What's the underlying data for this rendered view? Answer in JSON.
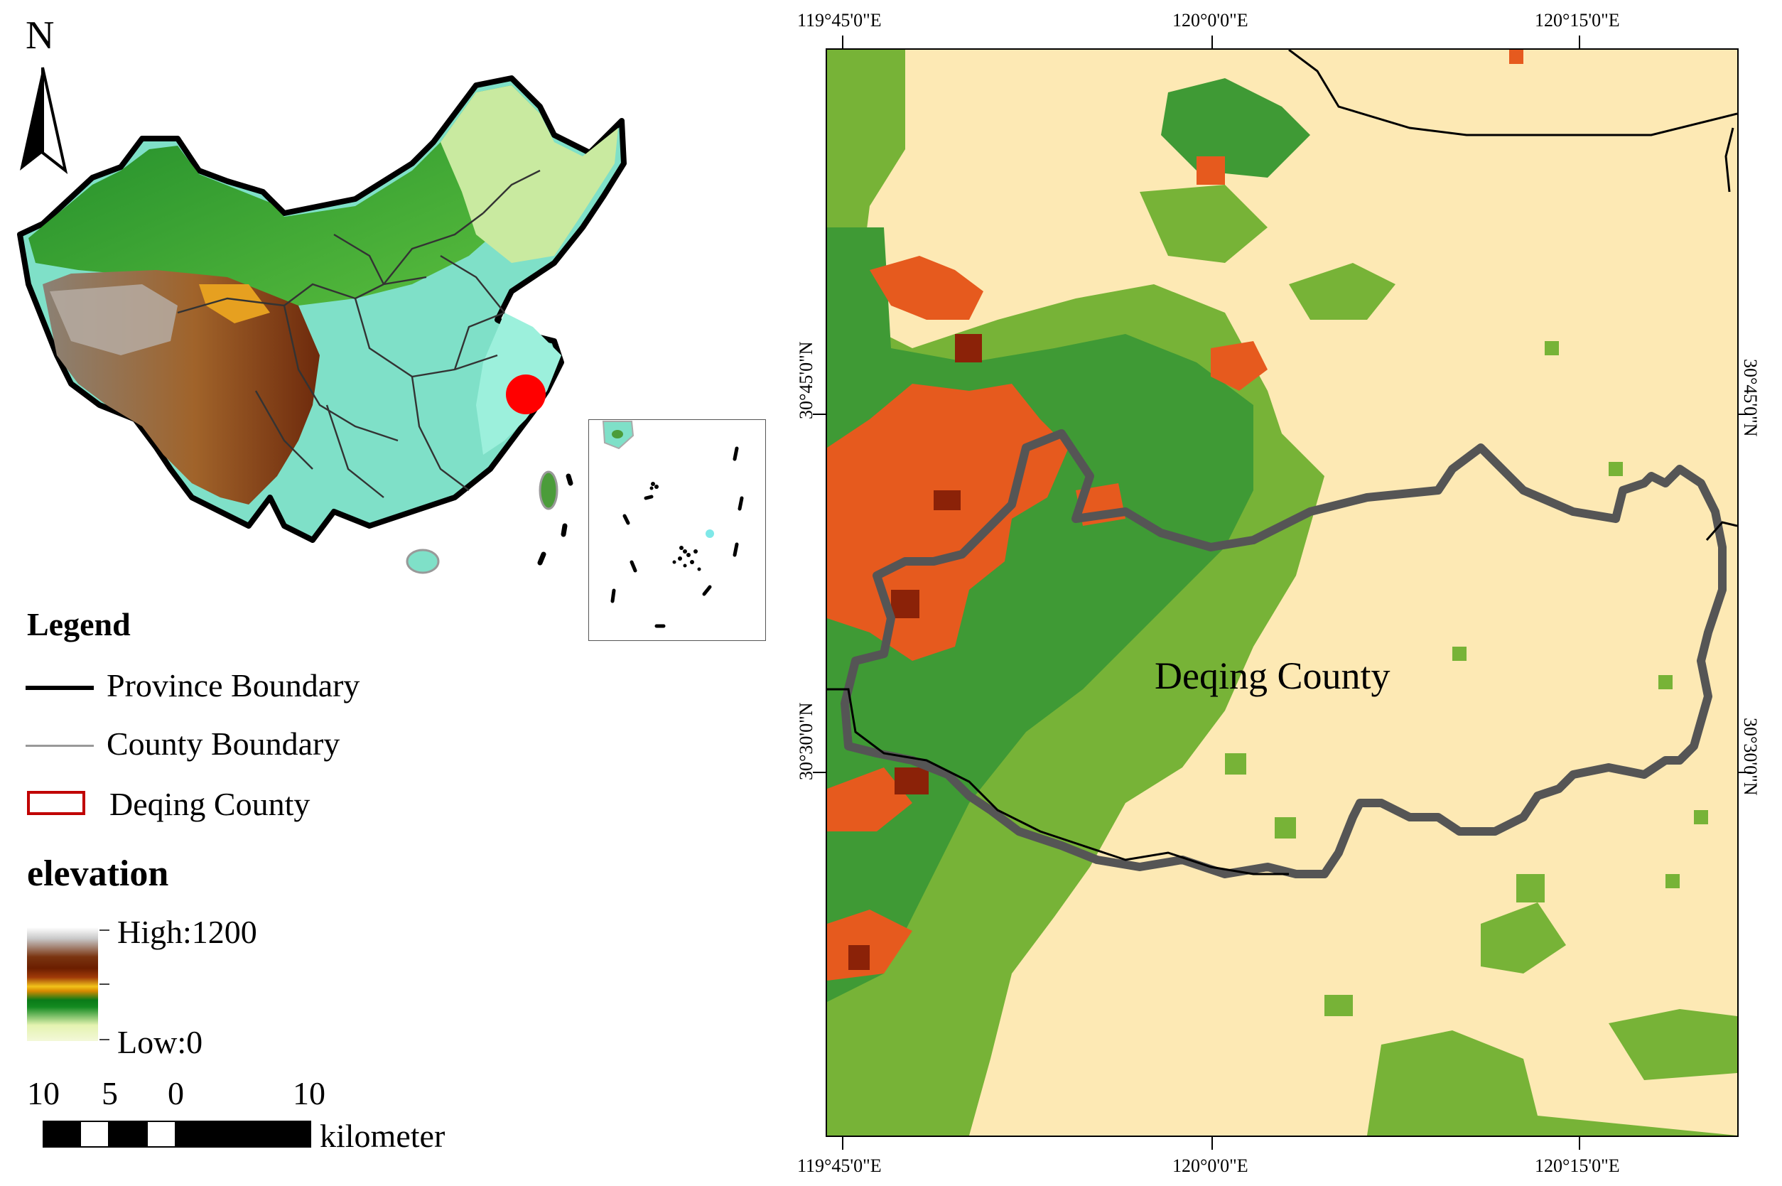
{
  "north_arrow": {
    "letter": "N",
    "icon": "north-arrow-icon"
  },
  "legend": {
    "title": "Legend",
    "items": [
      {
        "label": "Province Boundary",
        "symbol": "thick-black-line",
        "color": "#000000"
      },
      {
        "label": "County Boundary",
        "symbol": "thin-gray-line",
        "color": "#999999"
      },
      {
        "label": "Deqing County",
        "symbol": "red-outline-rect",
        "color": "#c00000"
      }
    ],
    "elevation": {
      "title": "elevation",
      "high": "High:1200",
      "low": "Low:0"
    }
  },
  "scale_bar": {
    "labels": [
      "10",
      "5",
      "0",
      "10"
    ],
    "unit": "kilometer"
  },
  "detail_map": {
    "top_labels": [
      "119°45'0\"E",
      "120°0'0\"E",
      "120°15'0\"E"
    ],
    "bottom_labels": [
      "119°45'0\"E",
      "120°0'0\"E",
      "120°15'0\"E"
    ],
    "left_labels": [
      "30°45'0\"N",
      "30°30'0\"N"
    ],
    "right_labels": [
      "30°45'0\"N",
      "30°30'0\"N"
    ],
    "county_label": "Deqing County",
    "colors": {
      "background": "#fde9b4",
      "light_green": "#77b337",
      "green": "#3f9a35",
      "orange": "#e65a1e",
      "dark_brown": "#8b2208",
      "boundary": "#555555"
    }
  }
}
